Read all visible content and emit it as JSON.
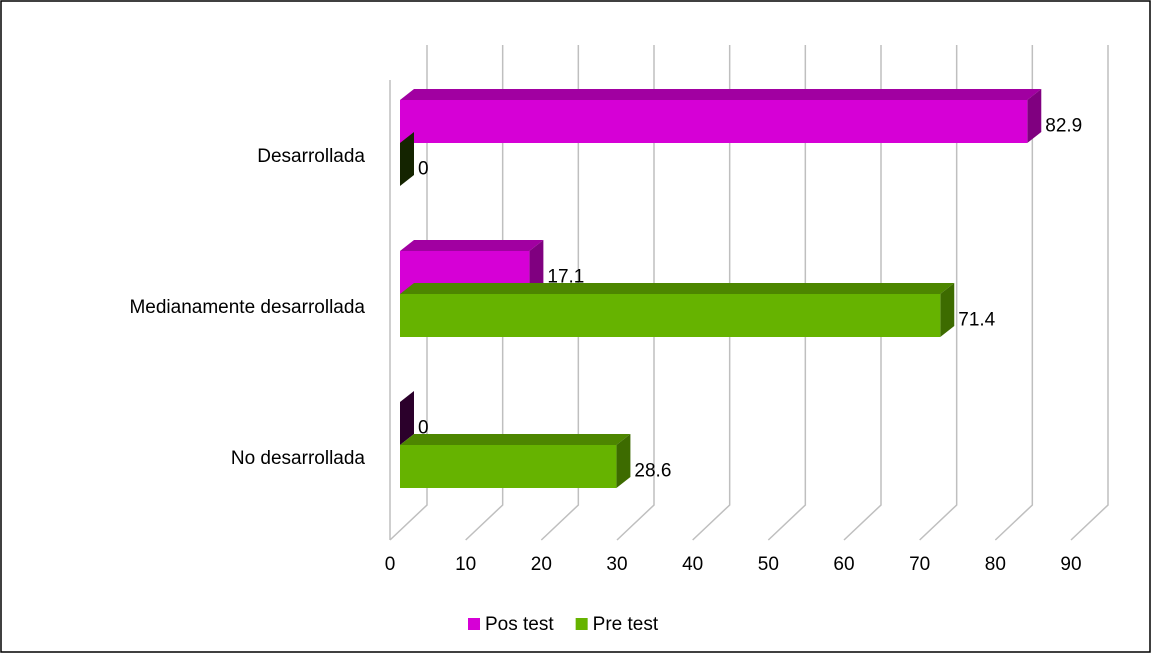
{
  "chart_data": {
    "type": "bar",
    "orientation": "horizontal",
    "three_d": true,
    "categories": [
      "Desarrollada",
      "Medianamente desarrollada",
      "No desarrollada"
    ],
    "series": [
      {
        "name": "Pos test",
        "color": "#d600d6",
        "values": [
          82.9,
          17.1,
          0
        ]
      },
      {
        "name": "Pre test",
        "color": "#66b300",
        "values": [
          0,
          71.4,
          28.6
        ]
      }
    ],
    "xlim": [
      0,
      90
    ],
    "xticks": [
      0,
      10,
      20,
      30,
      40,
      50,
      60,
      70,
      80,
      90
    ],
    "grid": true,
    "legend": "bottom"
  }
}
